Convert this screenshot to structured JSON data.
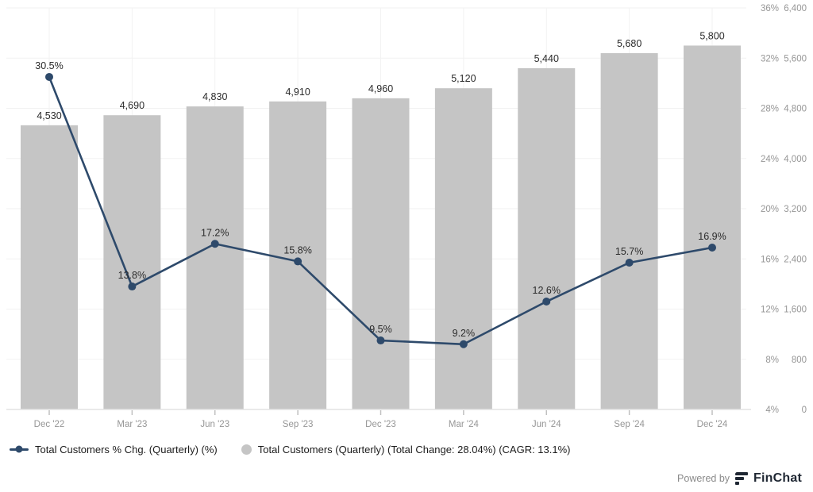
{
  "colors": {
    "bar": "#c5c5c5",
    "line": "#2e4a6b",
    "data_label": "#2b2b2b",
    "axis_label": "#969696",
    "grid": "#f2f2f2",
    "axis_line": "#e3e3e3",
    "tick": "#c0c0c0",
    "legend_text": "#1c1c1c",
    "footer_text": "#8a8a8a",
    "brand": "#1f2733"
  },
  "chart_data": {
    "type": "combo",
    "title": "",
    "categories": [
      "Dec '22",
      "Mar '23",
      "Jun '23",
      "Sep '23",
      "Dec '23",
      "Mar '24",
      "Jun '24",
      "Sep '24",
      "Dec '24"
    ],
    "series": [
      {
        "name": "Total Customers (Quarterly) (Total Change: 28.04%) (CAGR: 13.1%)",
        "type": "bar",
        "axis": "value",
        "values": [
          4530,
          4690,
          4830,
          4910,
          4960,
          5120,
          5440,
          5680,
          5800
        ],
        "labels": [
          "4,530",
          "4,690",
          "4,830",
          "4,910",
          "4,960",
          "5,120",
          "5,440",
          "5,680",
          "5,800"
        ]
      },
      {
        "name": "Total Customers % Chg. (Quarterly) (%)",
        "type": "line",
        "axis": "percent",
        "values": [
          30.5,
          13.8,
          17.2,
          15.8,
          9.5,
          9.2,
          12.6,
          15.7,
          16.9
        ],
        "labels": [
          "30.5%",
          "13.8%",
          "17.2%",
          "15.8%",
          "9.5%",
          "9.2%",
          "12.6%",
          "15.7%",
          "16.9%"
        ]
      }
    ],
    "axes": {
      "percent": {
        "min": 4,
        "max": 36,
        "ticks": [
          "36%",
          "32%",
          "28%",
          "24%",
          "20%",
          "16%",
          "12%",
          "8%",
          "4%"
        ],
        "position": "right-inner"
      },
      "value": {
        "min": 0,
        "max": 6400,
        "ticks": [
          "6,400",
          "5,600",
          "4,800",
          "4,000",
          "3,200",
          "2,400",
          "1,600",
          "800",
          "0"
        ],
        "position": "right-outer"
      }
    },
    "grid": "both",
    "legend_position": "bottom-left"
  },
  "legend": {
    "items": [
      {
        "label": "Total Customers % Chg. (Quarterly) (%)",
        "marker": "line-dot"
      },
      {
        "label": "Total Customers (Quarterly) (Total Change: 28.04%) (CAGR: 13.1%)",
        "marker": "circle"
      }
    ]
  },
  "footer": {
    "powered_by": "Powered by",
    "brand": "FinChat"
  }
}
